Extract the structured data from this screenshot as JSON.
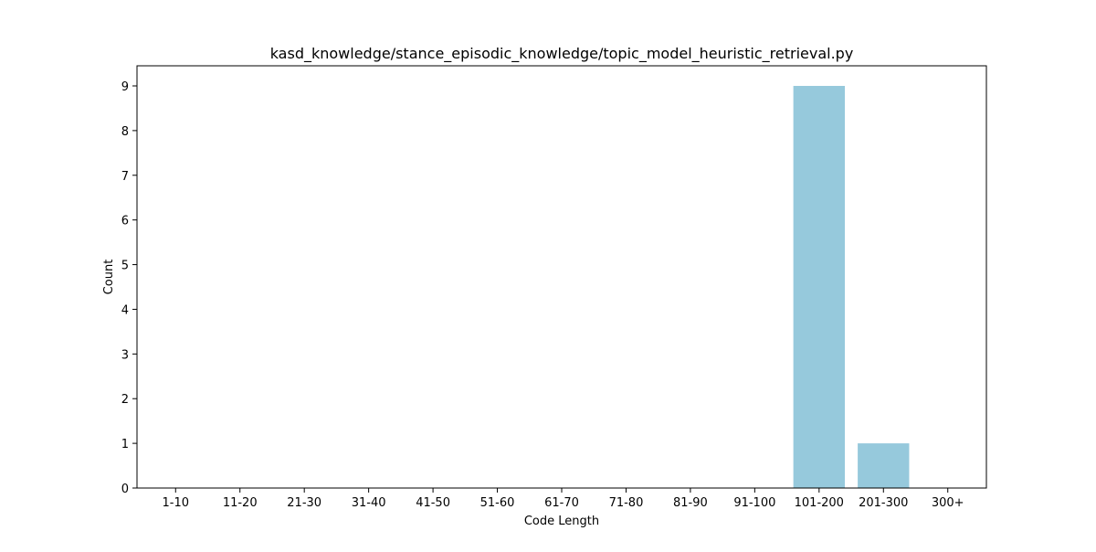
{
  "chart_data": {
    "type": "bar",
    "title": "kasd_knowledge/stance_episodic_knowledge/topic_model_heuristic_retrieval.py",
    "xlabel": "Code Length",
    "ylabel": "Count",
    "categories": [
      "1-10",
      "11-20",
      "21-30",
      "31-40",
      "41-50",
      "51-60",
      "61-70",
      "71-80",
      "81-90",
      "91-100",
      "101-200",
      "201-300",
      "300+"
    ],
    "values": [
      0,
      0,
      0,
      0,
      0,
      0,
      0,
      0,
      0,
      0,
      9,
      1,
      0
    ],
    "ylim": [
      0,
      9.45
    ],
    "yticks": [
      0,
      1,
      2,
      3,
      4,
      5,
      6,
      7,
      8,
      9
    ],
    "bar_color": "#96c9dc",
    "grid": false,
    "legend": "none"
  }
}
